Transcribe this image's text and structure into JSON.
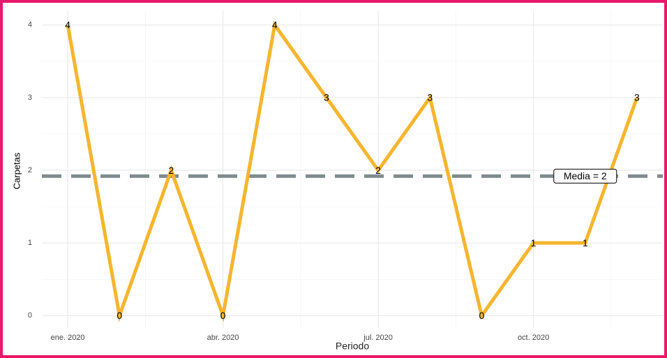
{
  "chart_data": {
    "type": "line",
    "x_label": "Periodo",
    "y_label": "Carpetas",
    "x": [
      "2020-01",
      "2020-02",
      "2020-03",
      "2020-04",
      "2020-05",
      "2020-06",
      "2020-07",
      "2020-08",
      "2020-09",
      "2020-10",
      "2020-11",
      "2020-12"
    ],
    "series": [
      {
        "color": "#f6b52d",
        "values": [
          4,
          0,
          2,
          0,
          4,
          3,
          2,
          3,
          0,
          1,
          1,
          3
        ]
      }
    ],
    "reference_line": {
      "value": 1.92,
      "label": "Media = 2",
      "color": "#7f8c8d"
    },
    "xlim": [
      "2019-12-16",
      "2020-12-16"
    ],
    "xticks": [
      {
        "value": "2020-01",
        "label": "ene. 2020"
      },
      {
        "value": "2020-04",
        "label": "abr. 2020"
      },
      {
        "value": "2020-07",
        "label": "jul. 2020"
      },
      {
        "value": "2020-10",
        "label": "oct. 2020"
      }
    ],
    "ylim": [
      -0.17,
      4.2
    ],
    "yticks": [
      0,
      1,
      2,
      3,
      4
    ],
    "grid": true
  }
}
